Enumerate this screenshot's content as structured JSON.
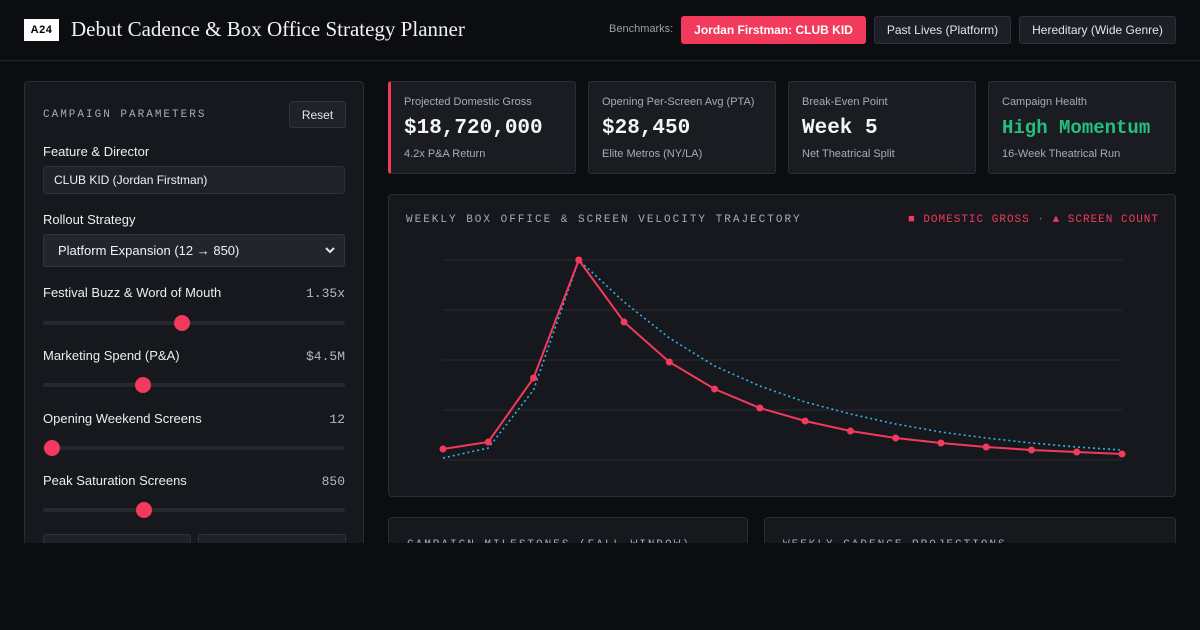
{
  "header": {
    "logo": "A24",
    "title": "Debut Cadence & Box Office Strategy Planner",
    "benchmarks_label": "Benchmarks:",
    "benchmarks": [
      {
        "label": "Jordan Firstman: CLUB KID",
        "active": true
      },
      {
        "label": "Past Lives (Platform)",
        "active": false
      },
      {
        "label": "Hereditary (Wide Genre)",
        "active": false
      }
    ]
  },
  "parameters": {
    "title": "CAMPAIGN PARAMETERS",
    "reset_label": "Reset",
    "feature_label": "Feature & Director",
    "feature_value": "CLUB KID (Jordan Firstman)",
    "rollout_label": "Rollout Strategy",
    "rollout_value": "Platform Expansion (12 → 850)",
    "sliders": [
      {
        "label": "Festival Buzz & Word of Mouth",
        "display": "1.35x",
        "level": 0.46
      },
      {
        "label": "Marketing Spend (P&A)",
        "display": "$4.5M",
        "level": 0.33
      },
      {
        "label": "Opening Weekend Screens",
        "display": "12",
        "level": 0.03
      },
      {
        "label": "Peak Saturation Screens",
        "display": "850",
        "level": 0.335
      }
    ]
  },
  "kpis": [
    {
      "label": "Projected Domestic Gross",
      "value": "$18,720,000",
      "sub": "4.2x P&A Return"
    },
    {
      "label": "Opening Per-Screen Avg (PTA)",
      "value": "$28,450",
      "sub": "Elite Metros (NY/LA)"
    },
    {
      "label": "Break-Even Point",
      "value": "Week 5",
      "sub": "Net Theatrical Split"
    },
    {
      "label": "Campaign Health",
      "value": "High Momentum",
      "sub": "16-Week Theatrical Run"
    }
  ],
  "chart": {
    "title": "WEEKLY BOX OFFICE & SCREEN VELOCITY TRAJECTORY",
    "legend_gross": "■ DOMESTIC GROSS",
    "legend_sep": "·",
    "legend_screens": "▲ SCREEN COUNT"
  },
  "chart_data": {
    "type": "line",
    "x": [
      1,
      2,
      3,
      4,
      5,
      6,
      7,
      8,
      9,
      10,
      11,
      12,
      13,
      14,
      15,
      16
    ],
    "series": [
      {
        "name": "DOMESTIC GROSS",
        "color": "#f23a5c",
        "style": "solid-markers",
        "values": [
          0.055,
          0.09,
          0.41,
          1.0,
          0.69,
          0.49,
          0.355,
          0.26,
          0.195,
          0.145,
          0.11,
          0.085,
          0.065,
          0.05,
          0.04,
          0.03
        ]
      },
      {
        "name": "SCREEN COUNT",
        "color": "#2fb4e8",
        "style": "dotted",
        "values": [
          0.01,
          0.06,
          0.35,
          1.0,
          0.79,
          0.61,
          0.47,
          0.37,
          0.29,
          0.23,
          0.18,
          0.14,
          0.11,
          0.085,
          0.065,
          0.05
        ]
      }
    ],
    "ylim": [
      0,
      1
    ],
    "grid": true,
    "legend_position": "top-right"
  },
  "bottom": {
    "milestones_title": "CAMPAIGN MILESTONES (FALL WINDOW)",
    "cadence_title": "WEEKLY CADENCE PROJECTIONS"
  }
}
